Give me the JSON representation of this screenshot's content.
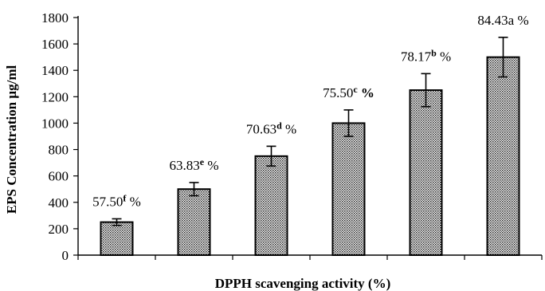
{
  "chart_data": {
    "type": "bar",
    "title": "",
    "xlabel": "DPPH scavenging activity (%)",
    "ylabel": "EPS Concentration µg/ml",
    "ylim": [
      0,
      1800
    ],
    "yticks": [
      0,
      200,
      400,
      600,
      800,
      1000,
      1200,
      1400,
      1600,
      1800
    ],
    "categories": [
      "",
      "",
      "",
      "",
      "",
      ""
    ],
    "values": [
      250,
      500,
      750,
      1000,
      1250,
      1500
    ],
    "errors": [
      25,
      50,
      75,
      100,
      125,
      150
    ],
    "labels": [
      {
        "value": "57.50",
        "letter": "f",
        "letter_bold": true,
        "suffix": " %",
        "suffix_bold": false
      },
      {
        "value": "63.83",
        "letter": "e",
        "letter_bold": true,
        "suffix": " %",
        "suffix_bold": false
      },
      {
        "value": "70.63",
        "letter": "d",
        "letter_bold": true,
        "suffix": " %",
        "suffix_bold": false
      },
      {
        "value": "75.50",
        "letter": "c",
        "letter_bold": true,
        "suffix": " %",
        "suffix_bold": true
      },
      {
        "value": "78.17",
        "letter": "b",
        "letter_bold": true,
        "suffix": " %",
        "suffix_bold": false
      },
      {
        "value": "84.43a",
        "letter": "",
        "letter_bold": false,
        "suffix": " %",
        "suffix_bold": false
      }
    ],
    "grid": false,
    "legend": "none",
    "bar_pattern": "dotted-checker"
  }
}
